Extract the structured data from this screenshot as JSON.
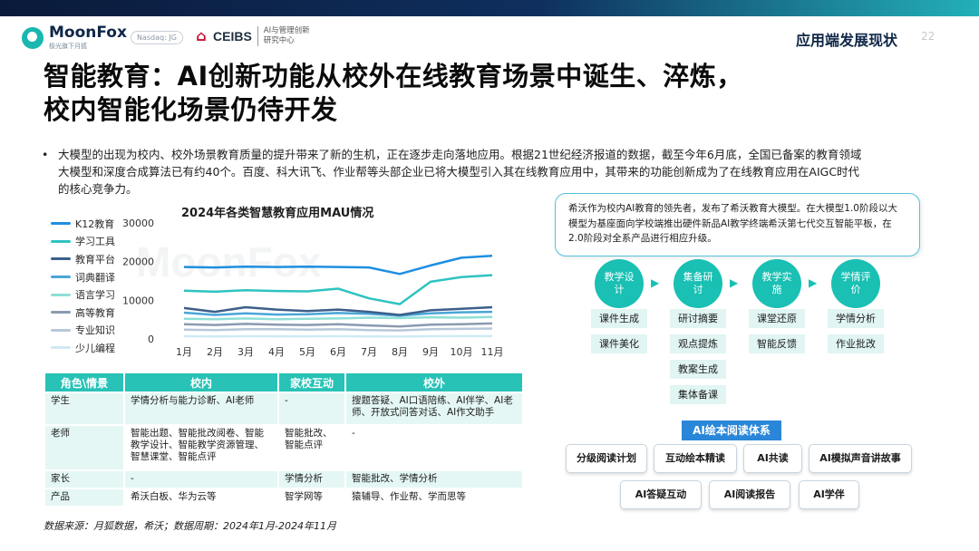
{
  "header": {
    "brand_name": "MoonFox",
    "brand_sub": "极光旗下月狐",
    "nasdaq": "Nasdaq: JG",
    "ceibs_name": "CEIBS",
    "ceibs_cn_line1": "AI与管理创新",
    "ceibs_cn_line2": "研究中心",
    "section": "应用端发展现状",
    "page": "22"
  },
  "title_line1": "智能教育：AI创新功能从校外在线教育场景中诞生、淬炼，",
  "title_line2": "校内智能化场景仍待开发",
  "bullet_line1": "大模型的出现为校内、校外场景教育质量的提升带来了新的生机，正在逐步走向落地应用。根据21世纪经济报道的数据，截至今年6月底，全国已备案的教育领域",
  "bullet_line2": "大模型和深度合成算法已有约40个。百度、科大讯飞、作业帮等头部企业已将大模型引入其在线教育应用中，其带来的功能创新成为了在线教育应用在AIGC时代",
  "bullet_line3": "的核心竞争力。",
  "chart_data": {
    "type": "line",
    "title": "2024年各类智慧教育应用MAU情况",
    "categories": [
      "1月",
      "2月",
      "3月",
      "4月",
      "5月",
      "6月",
      "7月",
      "8月",
      "9月",
      "10月",
      "11月"
    ],
    "ylim": [
      0,
      30000
    ],
    "yticks": [
      "0",
      "10000",
      "20000",
      "30000"
    ],
    "series": [
      {
        "name": "K12教育",
        "color": "#1f8fe0",
        "values": [
          18600,
          18500,
          18700,
          18600,
          18700,
          18600,
          18500,
          16800,
          19000,
          21000,
          21500
        ]
      },
      {
        "name": "学习工具",
        "color": "#2ec3c0",
        "values": [
          12500,
          12200,
          12600,
          12400,
          12300,
          13000,
          10500,
          9000,
          14800,
          16000,
          16500
        ]
      },
      {
        "name": "教育平台",
        "color": "#3d5f8a",
        "values": [
          8000,
          7000,
          8200,
          7600,
          7200,
          7600,
          7000,
          6200,
          7400,
          7800,
          8200
        ]
      },
      {
        "name": "词典翻译",
        "color": "#4aa6d8",
        "values": [
          6800,
          6200,
          6600,
          6300,
          6400,
          6700,
          6500,
          6000,
          6600,
          6900,
          7000
        ]
      },
      {
        "name": "语言学习",
        "color": "#8edfd6",
        "values": [
          5200,
          5100,
          5300,
          5100,
          5200,
          5300,
          5500,
          5400,
          5600,
          5500,
          5700
        ]
      },
      {
        "name": "高等教育",
        "color": "#8a9ab0",
        "values": [
          3800,
          3600,
          3900,
          3700,
          3600,
          3800,
          3500,
          3200,
          3700,
          3800,
          4000
        ]
      },
      {
        "name": "专业知识",
        "color": "#b7c7d9",
        "values": [
          2400,
          2300,
          2500,
          2500,
          2400,
          2500,
          2300,
          2200,
          2500,
          2600,
          2700
        ]
      },
      {
        "name": "少儿编程",
        "color": "#cfeaf5",
        "values": [
          700,
          650,
          700,
          680,
          690,
          700,
          650,
          600,
          700,
          720,
          730
        ]
      }
    ]
  },
  "table": {
    "headers": [
      "角色\\情景",
      "校内",
      "家校互动",
      "校外"
    ],
    "rows": [
      {
        "role": "学生",
        "school": "学情分析与能力诊断、AI老师",
        "home": "-",
        "outside": "搜题答疑、AI口语陪练、AI伴学、AI老师、开放式问答对话、AI作文助手"
      },
      {
        "role": "老师",
        "school": "智能出题、智能批改阅卷、智能教学设计、智能教学资源管理、智慧课堂、智能点评",
        "home": "智能批改、智能点评",
        "outside": "-"
      },
      {
        "role": "家长",
        "school": "-",
        "home": "学情分析",
        "outside": "智能批改、学情分析"
      },
      {
        "role": "产品",
        "school": "希沃白板、华为云等",
        "home": "智学网等",
        "outside": "猿辅导、作业帮、学而思等"
      }
    ]
  },
  "source": "数据来源：月狐数据，希沃；数据周期：2024年1月-2024年11月",
  "callout": "希沃作为校内AI教育的领先者，发布了希沃教育大模型。在大模型1.0阶段以大模型为基座面向学校端推出硬件新品AI教学终端希沃第七代交互智能平板，在2.0阶段对全系产品进行相应升级。",
  "stages": [
    {
      "label": "教学设计",
      "chips": [
        "课件生成",
        "课件美化"
      ]
    },
    {
      "label": "集备研讨",
      "chips": [
        "研讨摘要",
        "观点提炼",
        "教案生成",
        "集体备课"
      ]
    },
    {
      "label": "教学实施",
      "chips": [
        "课堂还原",
        "智能反馈"
      ]
    },
    {
      "label": "学情评价",
      "chips": [
        "学情分析",
        "作业批改"
      ]
    }
  ],
  "reading_system": {
    "title": "AI绘本阅读体系",
    "row1": [
      "分级阅读计划",
      "互动绘本精读",
      "AI共读",
      "AI模拟声音讲故事"
    ],
    "row2": [
      "AI答疑互动",
      "AI阅读报告",
      "AI学伴"
    ]
  },
  "watermark": "MoonFox"
}
